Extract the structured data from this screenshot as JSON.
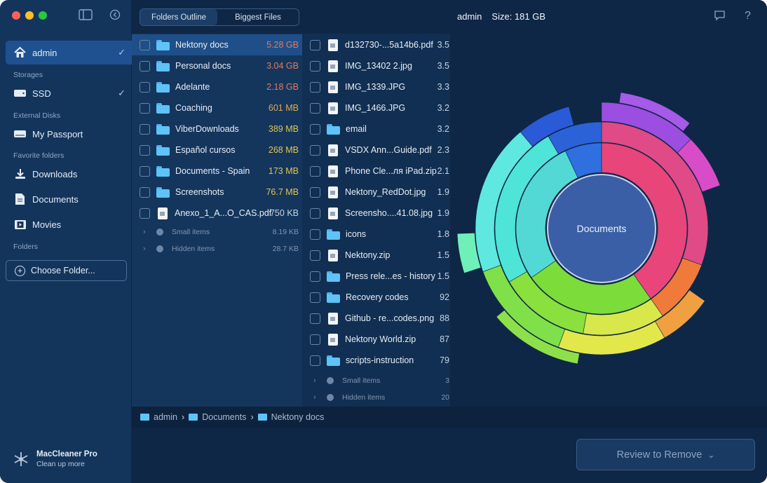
{
  "header": {
    "tabs": [
      "Folders Outline",
      "Biggest Files"
    ],
    "user": "admin",
    "size_label": "Size: 181 GB"
  },
  "sidebar": {
    "user": "admin",
    "sections": {
      "storages": "Storages",
      "external": "External Disks",
      "favorites": "Favorite folders",
      "folders": "Folders"
    },
    "ssd": "SSD",
    "passport": "My Passport",
    "favorites": [
      "Downloads",
      "Documents",
      "Movies"
    ],
    "choose_folder": "Choose Folder...",
    "brand_name": "MacCleaner Pro",
    "brand_sub": "Clean up more"
  },
  "column1": {
    "rows": [
      {
        "name": "Nektony docs",
        "size": "5.28 GB",
        "color": "#e07a5f"
      },
      {
        "name": "Personal docs",
        "size": "3.04 GB",
        "color": "#e07a5f"
      },
      {
        "name": "Adelante",
        "size": "2.18 GB",
        "color": "#e07a5f"
      },
      {
        "name": "Coaching",
        "size": "601 MB",
        "color": "#e0b84f"
      },
      {
        "name": "ViberDownloads",
        "size": "389 MB",
        "color": "#e0c64f"
      },
      {
        "name": "Español cursos",
        "size": "268 MB",
        "color": "#e0c64f"
      },
      {
        "name": "Documents - Spain",
        "size": "173 MB",
        "color": "#e0c64f"
      },
      {
        "name": "Screenshots",
        "size": "76.7 MB",
        "color": "#e0c64f"
      },
      {
        "name": "Anexo_1_A...O_CAS.pdf",
        "size": "750 KB",
        "color": "#c8d4e3"
      }
    ],
    "small_items": {
      "label": "Small items",
      "size": "8.19 KB"
    },
    "hidden_items": {
      "label": "Hidden items",
      "size": "28.7 KB"
    }
  },
  "column2": {
    "rows": [
      {
        "name": "d132730-...5a14b6.pdf",
        "size": "3.5",
        "type": "doc"
      },
      {
        "name": "IMG_13402 2.jpg",
        "size": "3.5",
        "type": "doc"
      },
      {
        "name": "IMG_1339.JPG",
        "size": "3.3",
        "type": "doc"
      },
      {
        "name": "IMG_1466.JPG",
        "size": "3.2",
        "type": "doc"
      },
      {
        "name": "email",
        "size": "3.2",
        "type": "folder"
      },
      {
        "name": "VSDX Ann...Guide.pdf",
        "size": "2.3",
        "type": "doc"
      },
      {
        "name": "Phone Cle...ля iPad.zip",
        "size": "2.1",
        "type": "doc"
      },
      {
        "name": "Nektony_RedDot.jpg",
        "size": "1.9",
        "type": "doc"
      },
      {
        "name": "Screensho....41.08.jpg",
        "size": "1.9",
        "type": "doc"
      },
      {
        "name": "icons",
        "size": "1.8",
        "type": "folder"
      },
      {
        "name": "Nektony.zip",
        "size": "1.5",
        "type": "doc"
      },
      {
        "name": "Press rele...es - history",
        "size": "1.5",
        "type": "folder"
      },
      {
        "name": "Recovery codes",
        "size": "92",
        "type": "folder"
      },
      {
        "name": "Github - re...codes.png",
        "size": "88",
        "type": "doc"
      },
      {
        "name": "Nektony World.zip",
        "size": "87",
        "type": "doc"
      },
      {
        "name": "scripts-instruction",
        "size": "79",
        "type": "folder"
      }
    ],
    "small_items": {
      "label": "Small items",
      "size": "3"
    },
    "hidden_items": {
      "label": "Hidden items",
      "size": "20"
    }
  },
  "sunburst": {
    "center_label": "Documents"
  },
  "breadcrumb": [
    "admin",
    "Documents",
    "Nektony docs"
  ],
  "footer": {
    "review_label": "Review to Remove"
  }
}
